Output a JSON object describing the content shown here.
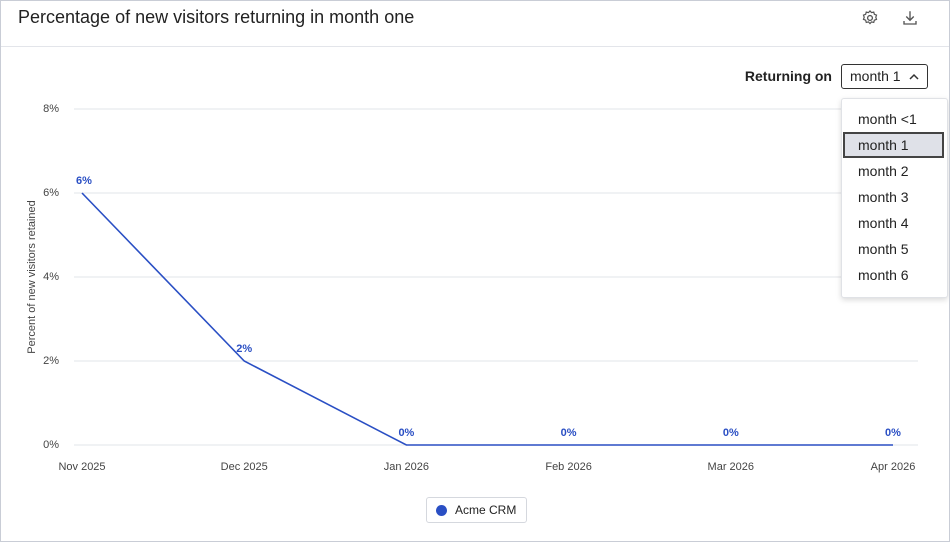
{
  "header": {
    "title": "Percentage of new visitors returning in month one"
  },
  "controls": {
    "label": "Returning on",
    "selected": "month 1",
    "options": [
      "month <1",
      "month 1",
      "month 2",
      "month 3",
      "month 4",
      "month 5",
      "month 6"
    ]
  },
  "chart_data": {
    "type": "line",
    "y_label": "Percent of new visitors retained",
    "categories": [
      "Nov 2025",
      "Dec 2025",
      "Jan 2026",
      "Feb 2026",
      "Mar 2026",
      "Apr 2026"
    ],
    "series": [
      {
        "name": "Acme CRM",
        "color": "#2a4fc4",
        "values": [
          6,
          2,
          0,
          0,
          0,
          0
        ],
        "value_labels": [
          "6%",
          "2%",
          "0%",
          "0%",
          "0%",
          "0%"
        ]
      }
    ],
    "ylim": [
      0,
      8
    ],
    "yticks": [
      {
        "value": 0,
        "label": "0%"
      },
      {
        "value": 2,
        "label": "2%"
      },
      {
        "value": 4,
        "label": "4%"
      },
      {
        "value": 6,
        "label": "6%"
      },
      {
        "value": 8,
        "label": "8%"
      }
    ],
    "grid": true
  }
}
